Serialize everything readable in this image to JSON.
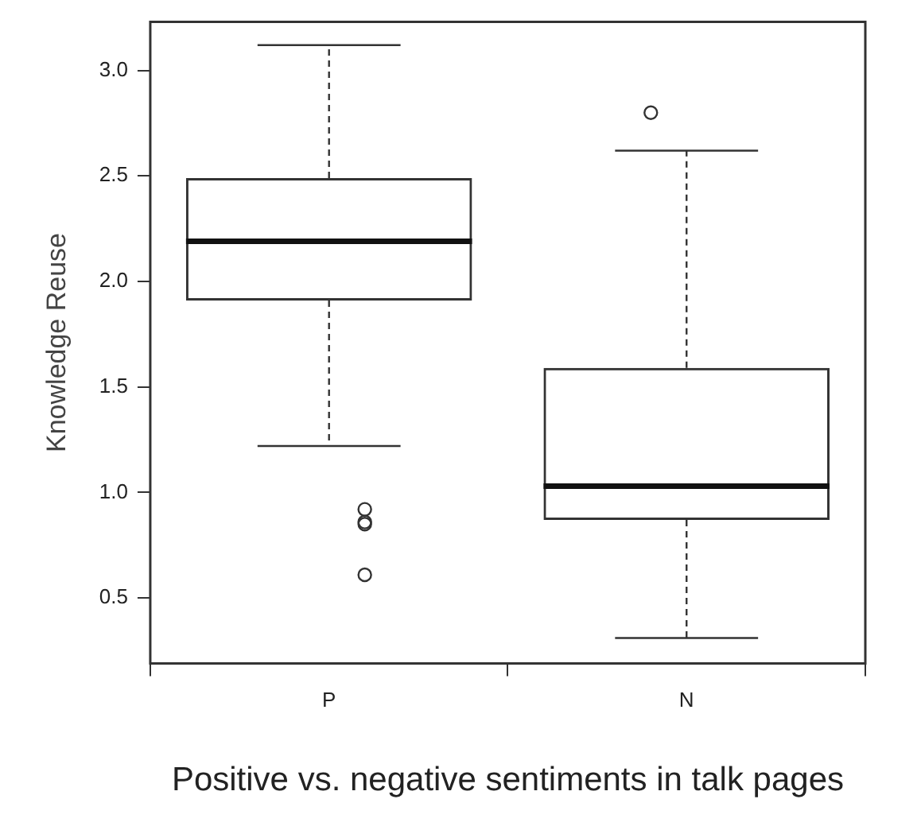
{
  "chart_data": {
    "type": "box",
    "xlabel": "Positive vs. negative sentiments in talk pages",
    "ylabel": "Knowledge Reuse",
    "categories": [
      "P",
      "N"
    ],
    "boxes": [
      {
        "low": 1.22,
        "q1": 1.91,
        "median": 2.19,
        "q3": 2.49,
        "high": 3.12,
        "outliers": [
          0.92,
          0.86,
          0.85,
          0.61
        ]
      },
      {
        "low": 0.31,
        "q1": 0.87,
        "median": 1.03,
        "q3": 1.59,
        "high": 2.62,
        "outliers": [
          2.8
        ]
      }
    ],
    "ylim": [
      0.19,
      3.23
    ],
    "yticks": [
      0.5,
      {
        "value": 1,
        "label": "1.0"
      },
      1.5,
      {
        "value": 2,
        "label": "2.0"
      },
      2.5,
      {
        "value": 3,
        "label": "3.0"
      }
    ]
  }
}
